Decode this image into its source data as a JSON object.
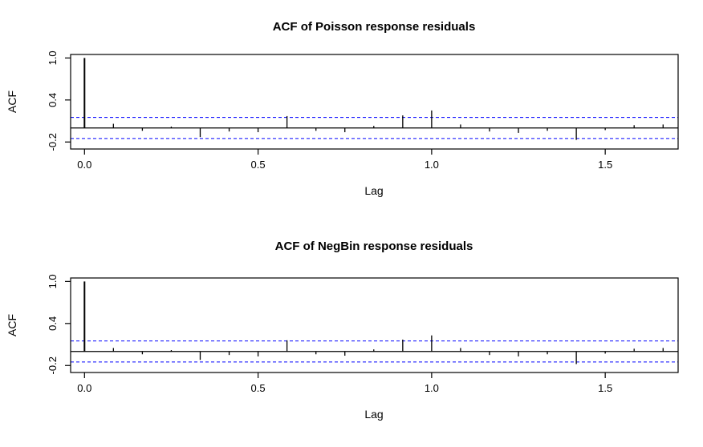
{
  "figure": {
    "background": "#ffffff",
    "line_color": "#000000"
  },
  "chart_data": [
    {
      "type": "bar",
      "subtype": "acf-spike-plot",
      "title": "ACF of Poisson response residuals",
      "xlabel": "Lag",
      "ylabel": "ACF",
      "xlim": [
        -0.04,
        1.71
      ],
      "ylim": [
        -0.3,
        1.05
      ],
      "x_tick_values": [
        0.0,
        0.5,
        1.0,
        1.5
      ],
      "x_tick_labels": [
        "0.0",
        "0.5",
        "1.0",
        "1.5"
      ],
      "y_tick_values": [
        -0.2,
        0.4,
        1.0
      ],
      "y_tick_labels": [
        "-0.2",
        "0.4",
        "1.0"
      ],
      "grid": false,
      "legend": "none",
      "confidence_bound": 0.15,
      "confidence_line_style": "dashed",
      "confidence_color": "#0000ff",
      "lags": [
        0,
        0.0833,
        0.1667,
        0.25,
        0.3333,
        0.4167,
        0.5,
        0.5833,
        0.6667,
        0.75,
        0.8333,
        0.9167,
        1.0,
        1.0833,
        1.1667,
        1.25,
        1.3333,
        1.4167,
        1.5,
        1.5833,
        1.6667
      ],
      "values": [
        1.0,
        0.06,
        -0.04,
        0.02,
        -0.13,
        -0.05,
        -0.06,
        0.17,
        -0.04,
        -0.06,
        0.03,
        0.18,
        0.25,
        0.05,
        -0.05,
        -0.07,
        -0.04,
        -0.17,
        -0.03,
        0.04,
        0.05
      ]
    },
    {
      "type": "bar",
      "subtype": "acf-spike-plot",
      "title": "ACF of NegBin response residuals",
      "xlabel": "Lag",
      "ylabel": "ACF",
      "xlim": [
        -0.04,
        1.71
      ],
      "ylim": [
        -0.3,
        1.05
      ],
      "x_tick_values": [
        0.0,
        0.5,
        1.0,
        1.5
      ],
      "x_tick_labels": [
        "0.0",
        "0.5",
        "1.0",
        "1.5"
      ],
      "y_tick_values": [
        -0.2,
        0.4,
        1.0
      ],
      "y_tick_labels": [
        "-0.2",
        "0.4",
        "1.0"
      ],
      "grid": false,
      "legend": "none",
      "confidence_bound": 0.15,
      "confidence_line_style": "dashed",
      "confidence_color": "#0000ff",
      "lags": [
        0,
        0.0833,
        0.1667,
        0.25,
        0.3333,
        0.4167,
        0.5,
        0.5833,
        0.6667,
        0.75,
        0.8333,
        0.9167,
        1.0,
        1.0833,
        1.1667,
        1.25,
        1.3333,
        1.4167,
        1.5,
        1.5833,
        1.6667
      ],
      "values": [
        1.0,
        0.05,
        -0.04,
        0.02,
        -0.12,
        -0.05,
        -0.07,
        0.16,
        -0.04,
        -0.06,
        0.03,
        0.17,
        0.23,
        0.05,
        -0.05,
        -0.07,
        -0.04,
        -0.18,
        -0.03,
        0.04,
        0.05
      ]
    }
  ]
}
